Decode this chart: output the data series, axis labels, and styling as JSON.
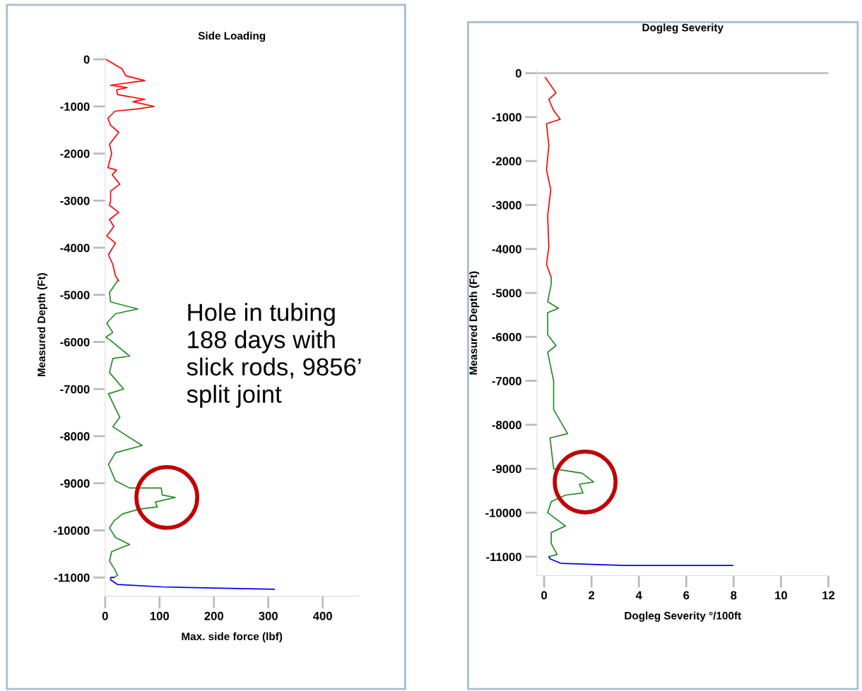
{
  "chart_data": [
    {
      "type": "line",
      "title": "Side Loading",
      "xlabel": "Max. side force (lbf)",
      "ylabel": "Measured Depth (Ft)",
      "xlim": [
        0,
        466
      ],
      "ylim": [
        -11400,
        130
      ],
      "xticks": [
        0,
        100,
        200,
        300,
        400
      ],
      "yticks": [
        0,
        -1000,
        -2000,
        -3000,
        -4000,
        -5000,
        -6000,
        -7000,
        -8000,
        -9000,
        -10000,
        -11000
      ],
      "grid": false,
      "legend": false,
      "marker": "none",
      "line_style": "solid",
      "annotations": [
        {
          "text": "Hole in tubing\n188 days with\nslick rods, 9856’\nsplit joint"
        }
      ],
      "series": [
        {
          "color": "#ff0000",
          "x": [
            1,
            31,
            38,
            73,
            10,
            40,
            21,
            23,
            73,
            51,
            90,
            62,
            18,
            5,
            10,
            25,
            8,
            12,
            5,
            21,
            13,
            27,
            10,
            10,
            8,
            25,
            8,
            16,
            3,
            19,
            6,
            14,
            19,
            25,
            23
          ],
          "values": [
            0,
            -200,
            -350,
            -450,
            -550,
            -600,
            -650,
            -750,
            -850,
            -900,
            -1000,
            -1050,
            -1100,
            -1250,
            -1400,
            -1550,
            -1800,
            -2000,
            -2300,
            -2350,
            -2450,
            -2650,
            -2800,
            -3000,
            -3100,
            -3250,
            -3400,
            -3550,
            -3750,
            -3900,
            -4150,
            -4350,
            -4600,
            -4700,
            -4700
          ]
        },
        {
          "color": "#228b22",
          "x": [
            23,
            8,
            10,
            60,
            19,
            3,
            14,
            1,
            8,
            45,
            14,
            8,
            34,
            6,
            27,
            14,
            68,
            19,
            6,
            19,
            45,
            103,
            105,
            129,
            92,
            96,
            62,
            32,
            16,
            8,
            19,
            45,
            12,
            8,
            16,
            23,
            16
          ],
          "values": [
            -4700,
            -4950,
            -5150,
            -5300,
            -5400,
            -5600,
            -5800,
            -5900,
            -5950,
            -6300,
            -6350,
            -6650,
            -7000,
            -7100,
            -7600,
            -7800,
            -8200,
            -8350,
            -8600,
            -8950,
            -9100,
            -9100,
            -9250,
            -9300,
            -9400,
            -9500,
            -9550,
            -9650,
            -9800,
            -9950,
            -10150,
            -10300,
            -10450,
            -10650,
            -10800,
            -10950,
            -11000
          ]
        },
        {
          "color": "#0000ff",
          "x": [
            16,
            10,
            10,
            23,
            105,
            311
          ],
          "values": [
            -11000,
            -11000,
            -11050,
            -11150,
            -11200,
            -11250
          ]
        }
      ]
    },
    {
      "type": "line",
      "title": "Dogleg Severity",
      "xlabel": "Dogleg Severity °/100ft",
      "ylabel": "Measured Depth (Ft)",
      "xlim": [
        -0.3,
        12
      ],
      "ylim": [
        -11430,
        60
      ],
      "xticks": [
        0,
        2,
        4,
        6,
        8,
        10,
        12
      ],
      "yticks": [
        0,
        -1000,
        -2000,
        -3000,
        -4000,
        -5000,
        -6000,
        -7000,
        -8000,
        -9000,
        -10000,
        -11000
      ],
      "grid": false,
      "legend": false,
      "marker": "none",
      "line_style": "solid",
      "ref_lines": [
        {
          "axis": "y",
          "value": 0,
          "color": "#bfbfbf"
        }
      ],
      "series": [
        {
          "color": "#ff0000",
          "x": [
            0.05,
            0.5,
            0.2,
            0.4,
            0.68,
            0.1,
            0.2,
            0.1,
            0.28,
            0.15,
            0.2,
            0.1,
            0.3
          ],
          "values": [
            -100,
            -450,
            -600,
            -850,
            -1050,
            -1150,
            -1650,
            -2200,
            -2650,
            -3250,
            -3950,
            -4350,
            -4650
          ]
        },
        {
          "color": "#228b22",
          "x": [
            0.3,
            0.3,
            0.15,
            0.6,
            0.15,
            0.15,
            0.5,
            0.15,
            0.15,
            0.4,
            0.4,
            0.99,
            0.25,
            0.4,
            1.6,
            2.09,
            1.49,
            1.64,
            0.9,
            0.3,
            0.15,
            0.9,
            0.3,
            0.3,
            0.55,
            0.2
          ],
          "values": [
            -4650,
            -4800,
            -5200,
            -5350,
            -5450,
            -5950,
            -6200,
            -6350,
            -6350,
            -7000,
            -7650,
            -8200,
            -8300,
            -9000,
            -9100,
            -9300,
            -9350,
            -9550,
            -9600,
            -9750,
            -10000,
            -10300,
            -10450,
            -10700,
            -10950,
            -11000
          ]
        },
        {
          "color": "#0000ff",
          "x": [
            0.2,
            0.25,
            0.7,
            3.4,
            7.96
          ],
          "values": [
            -11000,
            -11050,
            -11150,
            -11200,
            -11200
          ]
        }
      ]
    }
  ]
}
